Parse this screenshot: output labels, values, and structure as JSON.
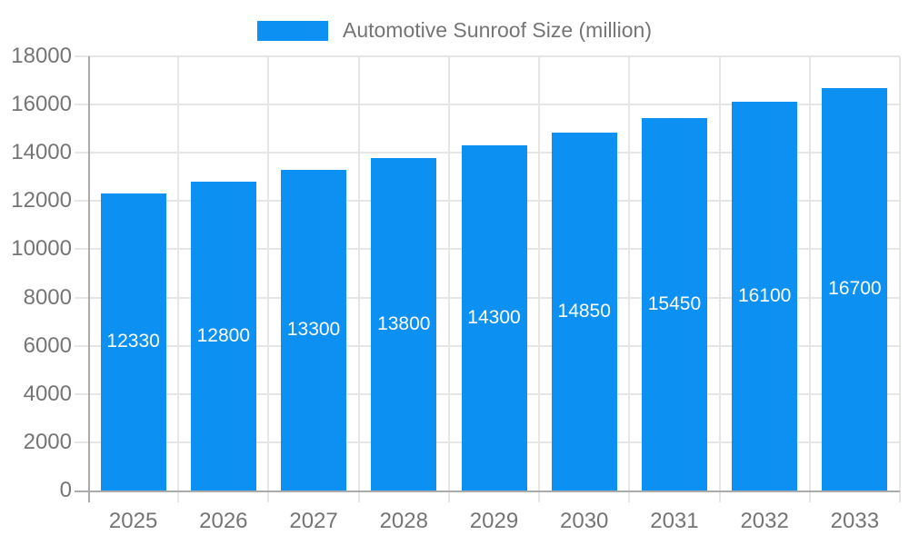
{
  "legend": {
    "label": "Automotive Sunroof Size (million)"
  },
  "colors": {
    "bar": "#0c90f2",
    "grid": "#e6e6e6",
    "axis": "#ababab",
    "text": "#757575",
    "bar_label": "#ffffff",
    "background": "#ffffff"
  },
  "chart_data": {
    "type": "bar",
    "categories": [
      "2025",
      "2026",
      "2027",
      "2028",
      "2029",
      "2030",
      "2031",
      "2032",
      "2033"
    ],
    "values": [
      12330,
      12800,
      13300,
      13800,
      14300,
      14850,
      15450,
      16100,
      16700
    ],
    "series_name": "Automotive Sunroof Size (million)",
    "title": "",
    "xlabel": "",
    "ylabel": "",
    "ylim": [
      0,
      18000
    ],
    "ytick_step": 2000,
    "yticks": [
      0,
      2000,
      4000,
      6000,
      8000,
      10000,
      12000,
      14000,
      16000,
      18000
    ],
    "grid": true,
    "legend_position": "top",
    "bar_value_labels": [
      "12330",
      "12800",
      "13300",
      "13800",
      "14300",
      "14850",
      "15450",
      "16100",
      "16700"
    ]
  }
}
